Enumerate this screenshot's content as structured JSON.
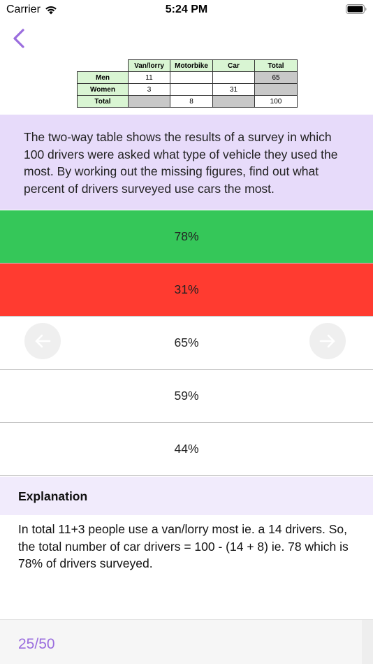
{
  "status_bar": {
    "carrier": "Carrier",
    "time": "5:24 PM"
  },
  "table": {
    "headers": [
      "Van/lorry",
      "Motorbike",
      "Car",
      "Total"
    ],
    "rows": [
      {
        "label": "Men",
        "cells": [
          "11",
          "",
          "",
          "65"
        ]
      },
      {
        "label": "Women",
        "cells": [
          "3",
          "",
          "31",
          ""
        ]
      },
      {
        "label": "Total",
        "cells": [
          "",
          "8",
          "",
          "100"
        ]
      }
    ]
  },
  "question": "The two-way table shows the results of a survey in which 100 drivers were asked what type of vehicle they used the most. By working out the missing figures, find out what percent of drivers surveyed use cars the most.",
  "answers": [
    {
      "label": "78%",
      "state": "correct"
    },
    {
      "label": "31%",
      "state": "wrong"
    },
    {
      "label": "65%",
      "state": "neutral"
    },
    {
      "label": "59%",
      "state": "neutral"
    },
    {
      "label": "44%",
      "state": "neutral"
    }
  ],
  "explanation": {
    "title": "Explanation",
    "text": "In total 11+3 people use a van/lorry most ie. a 14 drivers. So, the total number of car drivers = 100 - (14 + 8) ie. 78 which is 78% of drivers surveyed."
  },
  "progress": "25/50",
  "colors": {
    "accent": "#9a6dde",
    "correct": "#35c759",
    "wrong": "#ff3b30",
    "question_bg": "#e7dbfa"
  },
  "icons": {
    "back": "chevron-left-icon",
    "prev": "arrow-left-icon",
    "next": "arrow-right-icon"
  }
}
